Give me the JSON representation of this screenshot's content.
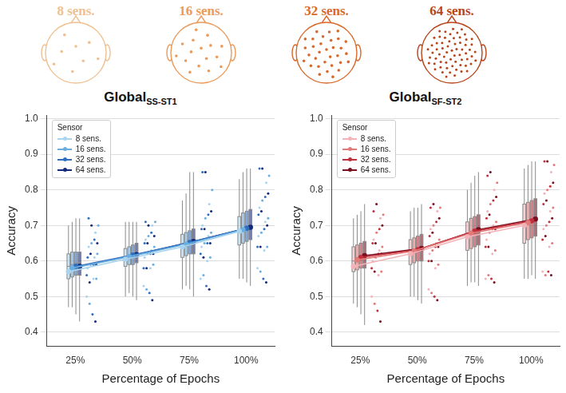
{
  "heads": [
    {
      "label": "8 sens.",
      "sensors": 8,
      "color": "#f0c090"
    },
    {
      "label": "16 sens.",
      "sensors": 16,
      "color": "#eb9a5a"
    },
    {
      "label": "32 sens.",
      "sensors": 32,
      "color": "#d9692a"
    },
    {
      "label": "64 sens.",
      "sensors": 64,
      "color": "#b8441a"
    }
  ],
  "chart_data": [
    {
      "type": "line",
      "title": "Global",
      "title_subscript": "SS-ST1",
      "x_label": "Percentage of Epochs",
      "y_label": "Accuracy",
      "categories": [
        "25%",
        "50%",
        "75%",
        "100%"
      ],
      "ylim": [
        0.36,
        1.01
      ],
      "yticks": [
        0.4,
        0.5,
        0.6,
        0.7,
        0.8,
        0.9,
        {
          "value": 1.0,
          "label": "1.0"
        }
      ],
      "grid": true,
      "legend": "upper left",
      "legend_title": "Sensor",
      "series": [
        {
          "name": "8 sens.",
          "color": "#a8d4ef",
          "marker": "circle",
          "line_style": "solid",
          "values": [
            0.57,
            0.605,
            0.64,
            0.683
          ],
          "box": [
            {
              "min": 0.47,
              "q1": 0.55,
              "median": 0.585,
              "q3": 0.62,
              "max": 0.7
            },
            {
              "min": 0.5,
              "q1": 0.585,
              "median": 0.61,
              "q3": 0.635,
              "max": 0.71
            },
            {
              "min": 0.52,
              "q1": 0.61,
              "median": 0.645,
              "q3": 0.675,
              "max": 0.77
            },
            {
              "min": 0.55,
              "q1": 0.645,
              "median": 0.685,
              "q3": 0.725,
              "max": 0.83
            }
          ],
          "points": [
            [
              0.5,
              0.55,
              0.58,
              0.61,
              0.64,
              0.68
            ],
            [
              0.53,
              0.58,
              0.61,
              0.63,
              0.66,
              0.7
            ],
            [
              0.55,
              0.6,
              0.64,
              0.67,
              0.7,
              0.76
            ],
            [
              0.58,
              0.63,
              0.67,
              0.71,
              0.75,
              0.82
            ]
          ]
        },
        {
          "name": "16 sens.",
          "color": "#6aaee0",
          "marker": "circle",
          "line_style": "solid",
          "values": [
            0.58,
            0.612,
            0.647,
            0.688
          ],
          "box": [
            {
              "min": 0.47,
              "q1": 0.555,
              "median": 0.59,
              "q3": 0.625,
              "max": 0.71
            },
            {
              "min": 0.51,
              "q1": 0.59,
              "median": 0.615,
              "q3": 0.64,
              "max": 0.71
            },
            {
              "min": 0.53,
              "q1": 0.615,
              "median": 0.65,
              "q3": 0.68,
              "max": 0.79
            },
            {
              "min": 0.55,
              "q1": 0.65,
              "median": 0.69,
              "q3": 0.735,
              "max": 0.85
            }
          ],
          "points": [
            [
              0.48,
              0.55,
              0.59,
              0.62,
              0.65,
              0.7
            ],
            [
              0.52,
              0.59,
              0.62,
              0.64,
              0.67,
              0.71
            ],
            [
              0.56,
              0.61,
              0.65,
              0.68,
              0.72,
              0.8
            ],
            [
              0.57,
              0.64,
              0.68,
              0.72,
              0.77,
              0.84
            ]
          ]
        },
        {
          "name": "32 sens.",
          "color": "#2f6fbf",
          "marker": "circle",
          "line_style": "solid",
          "values": [
            0.585,
            0.617,
            0.652,
            0.692
          ],
          "box": [
            {
              "min": 0.45,
              "q1": 0.56,
              "median": 0.595,
              "q3": 0.625,
              "max": 0.72
            },
            {
              "min": 0.5,
              "q1": 0.59,
              "median": 0.62,
              "q3": 0.645,
              "max": 0.71
            },
            {
              "min": 0.52,
              "q1": 0.62,
              "median": 0.655,
              "q3": 0.685,
              "max": 0.85
            },
            {
              "min": 0.54,
              "q1": 0.655,
              "median": 0.695,
              "q3": 0.74,
              "max": 0.86
            }
          ],
          "points": [
            [
              0.45,
              0.56,
              0.59,
              0.61,
              0.66,
              0.72
            ],
            [
              0.51,
              0.58,
              0.62,
              0.65,
              0.68,
              0.71
            ],
            [
              0.53,
              0.62,
              0.65,
              0.69,
              0.73,
              0.85
            ],
            [
              0.55,
              0.64,
              0.69,
              0.73,
              0.78,
              0.86
            ]
          ]
        },
        {
          "name": "64 sens.",
          "color": "#142a7a",
          "marker": "circle",
          "line_style": "solid",
          "values": [
            0.585,
            0.618,
            0.655,
            0.695
          ],
          "box": [
            {
              "min": 0.43,
              "q1": 0.56,
              "median": 0.595,
              "q3": 0.625,
              "max": 0.72
            },
            {
              "min": 0.49,
              "q1": 0.595,
              "median": 0.62,
              "q3": 0.65,
              "max": 0.71
            },
            {
              "min": 0.5,
              "q1": 0.62,
              "median": 0.66,
              "q3": 0.69,
              "max": 0.85
            },
            {
              "min": 0.53,
              "q1": 0.66,
              "median": 0.7,
              "q3": 0.745,
              "max": 0.86
            }
          ],
          "points": [
            [
              0.43,
              0.54,
              0.59,
              0.62,
              0.65,
              0.7
            ],
            [
              0.49,
              0.58,
              0.62,
              0.65,
              0.67,
              0.7
            ],
            [
              0.52,
              0.61,
              0.65,
              0.69,
              0.74,
              0.85
            ],
            [
              0.54,
              0.64,
              0.7,
              0.74,
              0.79,
              0.86
            ]
          ]
        }
      ]
    },
    {
      "type": "line",
      "title": "Global",
      "title_subscript": "SF-ST2",
      "x_label": "Percentage of Epochs",
      "y_label": "Accuracy",
      "categories": [
        "25%",
        "50%",
        "75%",
        "100%"
      ],
      "ylim": [
        0.36,
        1.01
      ],
      "yticks": [
        0.4,
        0.5,
        0.6,
        0.7,
        0.8,
        0.9,
        {
          "value": 1.0,
          "label": "1.0"
        }
      ],
      "grid": true,
      "legend": "upper left",
      "legend_title": "Sensor",
      "series": [
        {
          "name": "8 sens.",
          "color": "#f2b3b8",
          "marker": "circle",
          "line_style": "solid",
          "values": [
            0.585,
            0.62,
            0.668,
            0.7
          ],
          "box": [
            {
              "min": 0.48,
              "q1": 0.57,
              "median": 0.6,
              "q3": 0.64,
              "max": 0.72
            },
            {
              "min": 0.5,
              "q1": 0.59,
              "median": 0.625,
              "q3": 0.66,
              "max": 0.74
            },
            {
              "min": 0.53,
              "q1": 0.63,
              "median": 0.67,
              "q3": 0.71,
              "max": 0.8
            },
            {
              "min": 0.55,
              "q1": 0.65,
              "median": 0.7,
              "q3": 0.76,
              "max": 0.86
            }
          ],
          "points": [
            [
              0.5,
              0.56,
              0.6,
              0.63,
              0.66,
              0.72
            ],
            [
              0.52,
              0.58,
              0.62,
              0.65,
              0.69,
              0.74
            ],
            [
              0.55,
              0.62,
              0.66,
              0.7,
              0.74,
              0.8
            ],
            [
              0.57,
              0.64,
              0.69,
              0.74,
              0.79,
              0.85
            ]
          ]
        },
        {
          "name": "16 sens.",
          "color": "#e27a78",
          "marker": "circle",
          "line_style": "solid",
          "values": [
            0.603,
            0.628,
            0.678,
            0.708
          ],
          "box": [
            {
              "min": 0.47,
              "q1": 0.575,
              "median": 0.61,
              "q3": 0.645,
              "max": 0.73
            },
            {
              "min": 0.5,
              "q1": 0.595,
              "median": 0.63,
              "q3": 0.665,
              "max": 0.75
            },
            {
              "min": 0.54,
              "q1": 0.635,
              "median": 0.68,
              "q3": 0.72,
              "max": 0.82
            },
            {
              "min": 0.55,
              "q1": 0.66,
              "median": 0.71,
              "q3": 0.765,
              "max": 0.87
            }
          ],
          "points": [
            [
              0.48,
              0.57,
              0.61,
              0.64,
              0.68,
              0.73
            ],
            [
              0.51,
              0.59,
              0.63,
              0.66,
              0.7,
              0.75
            ],
            [
              0.56,
              0.63,
              0.68,
              0.71,
              0.76,
              0.82
            ],
            [
              0.56,
              0.65,
              0.7,
              0.75,
              0.8,
              0.87
            ]
          ]
        },
        {
          "name": "32 sens.",
          "color": "#c22f3c",
          "marker": "circle",
          "line_style": "solid",
          "values": [
            0.61,
            0.632,
            0.684,
            0.713
          ],
          "box": [
            {
              "min": 0.45,
              "q1": 0.58,
              "median": 0.615,
              "q3": 0.65,
              "max": 0.74
            },
            {
              "min": 0.49,
              "q1": 0.6,
              "median": 0.635,
              "q3": 0.67,
              "max": 0.75
            },
            {
              "min": 0.54,
              "q1": 0.64,
              "median": 0.685,
              "q3": 0.725,
              "max": 0.84
            },
            {
              "min": 0.56,
              "q1": 0.665,
              "median": 0.715,
              "q3": 0.77,
              "max": 0.88
            }
          ],
          "points": [
            [
              0.46,
              0.58,
              0.62,
              0.65,
              0.69,
              0.74
            ],
            [
              0.5,
              0.6,
              0.64,
              0.67,
              0.71,
              0.75
            ],
            [
              0.55,
              0.64,
              0.69,
              0.72,
              0.77,
              0.84
            ],
            [
              0.57,
              0.66,
              0.71,
              0.76,
              0.81,
              0.88
            ]
          ]
        },
        {
          "name": "64 sens.",
          "color": "#7a1020",
          "marker": "circle",
          "line_style": "solid",
          "values": [
            0.615,
            0.635,
            0.688,
            0.718
          ],
          "box": [
            {
              "min": 0.42,
              "q1": 0.58,
              "median": 0.62,
              "q3": 0.655,
              "max": 0.76
            },
            {
              "min": 0.48,
              "q1": 0.6,
              "median": 0.64,
              "q3": 0.675,
              "max": 0.76
            },
            {
              "min": 0.53,
              "q1": 0.645,
              "median": 0.69,
              "q3": 0.73,
              "max": 0.85
            },
            {
              "min": 0.55,
              "q1": 0.67,
              "median": 0.72,
              "q3": 0.775,
              "max": 0.88
            }
          ],
          "points": [
            [
              0.43,
              0.57,
              0.62,
              0.65,
              0.7,
              0.76
            ],
            [
              0.49,
              0.6,
              0.64,
              0.68,
              0.72,
              0.76
            ],
            [
              0.54,
              0.64,
              0.69,
              0.73,
              0.78,
              0.85
            ],
            [
              0.56,
              0.67,
              0.72,
              0.77,
              0.82,
              0.88
            ]
          ]
        }
      ]
    }
  ]
}
